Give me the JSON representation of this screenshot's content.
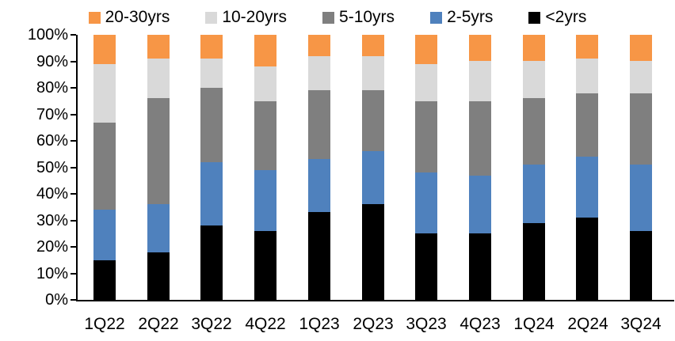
{
  "page": {
    "background": "#FFFFFF",
    "axis_color": "#000000",
    "text_color": "#000000"
  },
  "chart_data": {
    "type": "bar",
    "subtype": "100%-stacked-column",
    "title": "",
    "xlabel": "",
    "ylabel": "",
    "ylim": [
      0,
      100
    ],
    "y_tick_labels": [
      "0%",
      "10%",
      "20%",
      "30%",
      "40%",
      "50%",
      "60%",
      "70%",
      "80%",
      "90%",
      "100%"
    ],
    "gridlines": false,
    "legend_position": "top",
    "legend_order": [
      "20-30yrs",
      "10-20yrs",
      "5-10yrs",
      "2-5yrs",
      "<2yrs"
    ],
    "categories": [
      "1Q22",
      "2Q22",
      "3Q22",
      "4Q22",
      "1Q23",
      "2Q23",
      "3Q23",
      "4Q23",
      "1Q24",
      "2Q24",
      "3Q24"
    ],
    "series": [
      {
        "name": "<2yrs",
        "color": "#000000",
        "values": [
          15,
          18,
          28,
          26,
          33,
          36,
          25,
          25,
          29,
          31,
          26
        ]
      },
      {
        "name": "2-5yrs",
        "color": "#4F81BD",
        "values": [
          19,
          18,
          24,
          23,
          20,
          20,
          23,
          22,
          22,
          23,
          25
        ]
      },
      {
        "name": "5-10yrs",
        "color": "#7F7F7F",
        "values": [
          33,
          40,
          28,
          26,
          26,
          23,
          27,
          28,
          25,
          24,
          27
        ]
      },
      {
        "name": "10-20yrs",
        "color": "#D9D9D9",
        "values": [
          22,
          15,
          11,
          13,
          13,
          13,
          14,
          15,
          14,
          13,
          12
        ]
      },
      {
        "name": "20-30yrs",
        "color": "#F79646",
        "values": [
          11,
          9,
          9,
          12,
          8,
          8,
          11,
          10,
          10,
          9,
          10
        ]
      }
    ],
    "values_unit": "%"
  }
}
